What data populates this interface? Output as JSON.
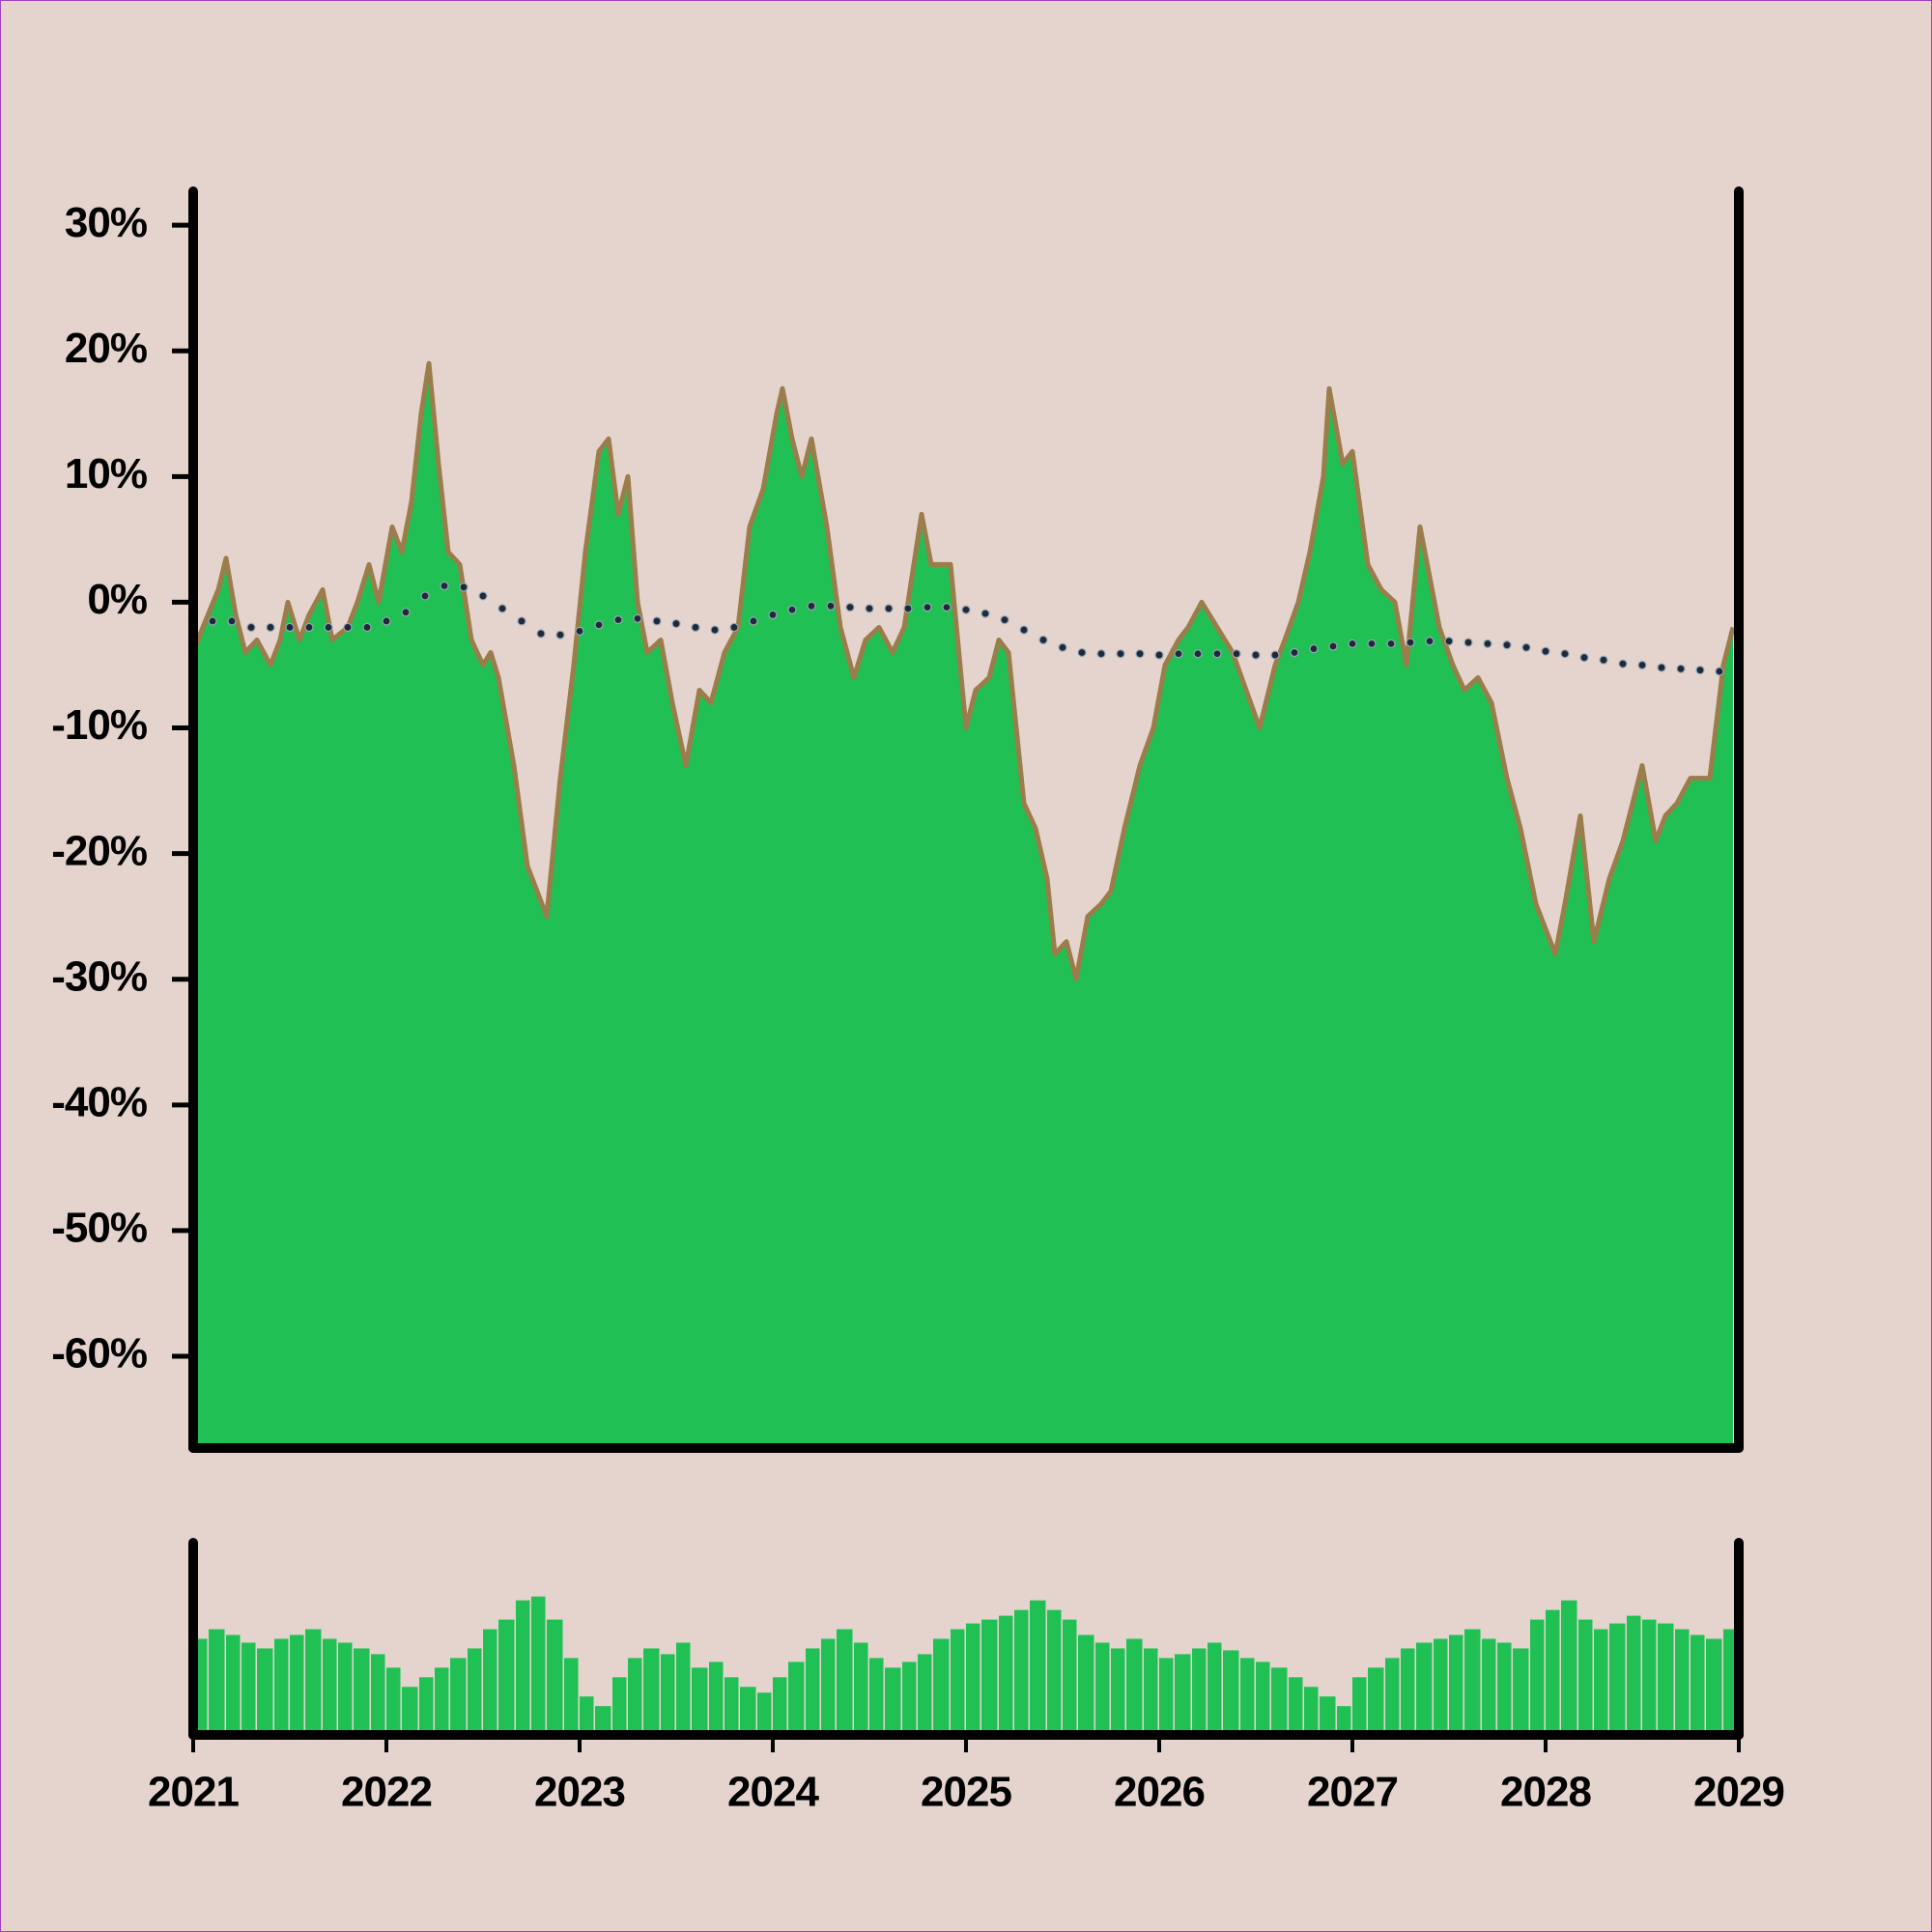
{
  "chart_data": [
    {
      "type": "area",
      "xlim": [
        2021,
        2029
      ],
      "ylim": [
        -67.3,
        32.7
      ],
      "yticks": [
        {
          "value": 30,
          "label": "30%"
        },
        {
          "value": 20,
          "label": "20%"
        },
        {
          "value": 10,
          "label": "10%"
        },
        {
          "value": 0,
          "label": "0%"
        },
        {
          "value": -10,
          "label": "-10%"
        },
        {
          "value": -20,
          "label": "-20%"
        },
        {
          "value": -30,
          "label": "-30%"
        },
        {
          "value": -40,
          "label": "-40%"
        },
        {
          "value": -50,
          "label": "-50%"
        },
        {
          "value": -60,
          "label": "-60%"
        }
      ],
      "grid": false,
      "series": [
        {
          "type": "area",
          "color": "#21c055",
          "line_color": "#9a7d4a",
          "x": [
            2021.0,
            2021.05,
            2021.13,
            2021.17,
            2021.22,
            2021.27,
            2021.33,
            2021.4,
            2021.45,
            2021.49,
            2021.55,
            2021.6,
            2021.67,
            2021.72,
            2021.8,
            2021.85,
            2021.91,
            2021.96,
            2022.03,
            2022.08,
            2022.13,
            2022.18,
            2022.22,
            2022.27,
            2022.32,
            2022.38,
            2022.44,
            2022.5,
            2022.54,
            2022.58,
            2022.66,
            2022.73,
            2022.78,
            2022.83,
            2022.9,
            2022.97,
            2023.03,
            2023.1,
            2023.15,
            2023.2,
            2023.25,
            2023.3,
            2023.35,
            2023.42,
            2023.48,
            2023.55,
            2023.62,
            2023.68,
            2023.75,
            2023.82,
            2023.88,
            2023.95,
            2024.02,
            2024.05,
            2024.1,
            2024.15,
            2024.2,
            2024.28,
            2024.35,
            2024.42,
            2024.48,
            2024.55,
            2024.62,
            2024.68,
            2024.77,
            2024.82,
            2024.92,
            2025.0,
            2025.05,
            2025.12,
            2025.17,
            2025.22,
            2025.3,
            2025.36,
            2025.42,
            2025.46,
            2025.52,
            2025.57,
            2025.63,
            2025.7,
            2025.75,
            2025.82,
            2025.9,
            2025.97,
            2026.03,
            2026.1,
            2026.15,
            2026.22,
            2026.3,
            2026.38,
            2026.45,
            2026.52,
            2026.6,
            2026.65,
            2026.72,
            2026.78,
            2026.85,
            2026.88,
            2026.95,
            2027.0,
            2027.08,
            2027.15,
            2027.22,
            2027.28,
            2027.35,
            2027.4,
            2027.45,
            2027.52,
            2027.58,
            2027.65,
            2027.72,
            2027.8,
            2027.87,
            2027.95,
            2028.05,
            2028.1,
            2028.18,
            2028.25,
            2028.33,
            2028.4,
            2028.45,
            2028.5,
            2028.57,
            2028.62,
            2028.68,
            2028.75,
            2028.85,
            2028.92,
            2028.97
          ],
          "values": [
            -4,
            -2,
            1,
            3.5,
            -1,
            -4,
            -3,
            -5,
            -3,
            0,
            -3,
            -1,
            1,
            -3,
            -2,
            0,
            3,
            0,
            6,
            4,
            8,
            15,
            19,
            11,
            4,
            3,
            -3,
            -5,
            -4,
            -6,
            -13,
            -21,
            -23,
            -25,
            -14,
            -5,
            4,
            12,
            13,
            7,
            10,
            0,
            -4,
            -3,
            -8,
            -13,
            -7,
            -8,
            -4,
            -2,
            6,
            9,
            15,
            17,
            13,
            10,
            13,
            6,
            -2,
            -6,
            -3,
            -2,
            -4,
            -2,
            7,
            3,
            3,
            -10,
            -7,
            -6,
            -3,
            -4,
            -16,
            -18,
            -22,
            -28,
            -27,
            -30,
            -25,
            -24,
            -23,
            -18,
            -13,
            -10,
            -5,
            -3,
            -2,
            0,
            -2,
            -4,
            -7,
            -10,
            -5,
            -3,
            0,
            4,
            10,
            17,
            11,
            12,
            3,
            1,
            0,
            -5,
            6,
            2,
            -2,
            -5,
            -7,
            -6,
            -8,
            -14,
            -18,
            -24,
            -28,
            -24,
            -17,
            -27,
            -22,
            -19,
            -16,
            -13,
            -19,
            -17,
            -16,
            -14,
            -14,
            -5,
            -2
          ]
        },
        {
          "type": "line",
          "color": "#1e2a3a",
          "marker_edge": "#9aa7b5",
          "x": [
            2021.0,
            2021.1,
            2021.2,
            2021.3,
            2021.4,
            2021.5,
            2021.6,
            2021.7,
            2021.8,
            2021.9,
            2022.0,
            2022.1,
            2022.2,
            2022.3,
            2022.4,
            2022.5,
            2022.6,
            2022.7,
            2022.8,
            2022.9,
            2023.0,
            2023.1,
            2023.2,
            2023.3,
            2023.4,
            2023.5,
            2023.6,
            2023.7,
            2023.8,
            2023.9,
            2024.0,
            2024.1,
            2024.2,
            2024.3,
            2024.4,
            2024.5,
            2024.6,
            2024.7,
            2024.8,
            2024.9,
            2025.0,
            2025.1,
            2025.2,
            2025.3,
            2025.4,
            2025.5,
            2025.6,
            2025.7,
            2025.8,
            2025.9,
            2026.0,
            2026.1,
            2026.2,
            2026.3,
            2026.4,
            2026.5,
            2026.6,
            2026.7,
            2026.8,
            2026.9,
            2027.0,
            2027.1,
            2027.2,
            2027.3,
            2027.4,
            2027.5,
            2027.6,
            2027.7,
            2027.8,
            2027.9,
            2028.0,
            2028.1,
            2028.2,
            2028.3,
            2028.4,
            2028.5,
            2028.6,
            2028.7,
            2028.8,
            2028.9
          ],
          "values": [
            -3.5,
            -1.5,
            -1.5,
            -2,
            -2,
            -2,
            -2,
            -2,
            -2,
            -2,
            -1.5,
            -0.8,
            0.5,
            1.3,
            1.2,
            0.5,
            -0.5,
            -1.5,
            -2.5,
            -2.6,
            -2.3,
            -1.8,
            -1.4,
            -1.3,
            -1.5,
            -1.7,
            -2,
            -2.2,
            -2,
            -1.5,
            -1,
            -0.6,
            -0.3,
            -0.3,
            -0.4,
            -0.5,
            -0.5,
            -0.5,
            -0.4,
            -0.4,
            -0.6,
            -0.9,
            -1.4,
            -2.2,
            -3,
            -3.6,
            -4,
            -4.1,
            -4.1,
            -4.1,
            -4.2,
            -4.1,
            -4.1,
            -4.1,
            -4.1,
            -4.2,
            -4.2,
            -4,
            -3.7,
            -3.5,
            -3.3,
            -3.3,
            -3.3,
            -3.2,
            -3.1,
            -3.1,
            -3.2,
            -3.3,
            -3.4,
            -3.6,
            -3.9,
            -4.1,
            -4.4,
            -4.6,
            -4.9,
            -5,
            -5.2,
            -5.3,
            -5.4,
            -5.5
          ]
        }
      ]
    },
    {
      "type": "bar",
      "color": "#21c055",
      "xlim": [
        2021,
        2029
      ],
      "ylim": [
        0,
        100
      ],
      "xticks": [
        2021,
        2022,
        2023,
        2024,
        2025,
        2026,
        2027,
        2028,
        2029
      ],
      "x": [
        2021.0,
        2021.08,
        2021.17,
        2021.25,
        2021.33,
        2021.42,
        2021.5,
        2021.58,
        2021.67,
        2021.75,
        2021.83,
        2021.92,
        2022.0,
        2022.08,
        2022.17,
        2022.25,
        2022.33,
        2022.42,
        2022.5,
        2022.58,
        2022.67,
        2022.75,
        2022.83,
        2022.92,
        2023.0,
        2023.08,
        2023.17,
        2023.25,
        2023.33,
        2023.42,
        2023.5,
        2023.58,
        2023.67,
        2023.75,
        2023.83,
        2023.92,
        2024.0,
        2024.08,
        2024.17,
        2024.25,
        2024.33,
        2024.42,
        2024.5,
        2024.58,
        2024.67,
        2024.75,
        2024.83,
        2024.92,
        2025.0,
        2025.08,
        2025.17,
        2025.25,
        2025.33,
        2025.42,
        2025.5,
        2025.58,
        2025.67,
        2025.75,
        2025.83,
        2025.92,
        2026.0,
        2026.08,
        2026.17,
        2026.25,
        2026.33,
        2026.42,
        2026.5,
        2026.58,
        2026.67,
        2026.75,
        2026.83,
        2026.92,
        2027.0,
        2027.08,
        2027.17,
        2027.25,
        2027.33,
        2027.42,
        2027.5,
        2027.58,
        2027.67,
        2027.75,
        2027.83,
        2027.92,
        2028.0,
        2028.08,
        2028.17,
        2028.25,
        2028.33,
        2028.42,
        2028.5,
        2028.58,
        2028.67,
        2028.75,
        2028.83,
        2028.92
      ],
      "values": [
        50,
        55,
        52,
        48,
        45,
        50,
        52,
        55,
        50,
        48,
        45,
        42,
        35,
        25,
        30,
        35,
        40,
        45,
        55,
        60,
        70,
        72,
        60,
        40,
        20,
        15,
        30,
        40,
        45,
        42,
        48,
        35,
        38,
        30,
        25,
        22,
        30,
        38,
        45,
        50,
        55,
        48,
        40,
        35,
        38,
        42,
        50,
        55,
        58,
        60,
        62,
        65,
        70,
        65,
        60,
        52,
        48,
        45,
        50,
        45,
        40,
        42,
        45,
        48,
        44,
        40,
        38,
        35,
        30,
        25,
        20,
        15,
        30,
        35,
        40,
        45,
        48,
        50,
        52,
        55,
        50,
        48,
        45,
        60,
        65,
        70,
        60,
        55,
        58,
        62,
        60,
        58,
        55,
        52,
        50,
        55
      ]
    }
  ]
}
